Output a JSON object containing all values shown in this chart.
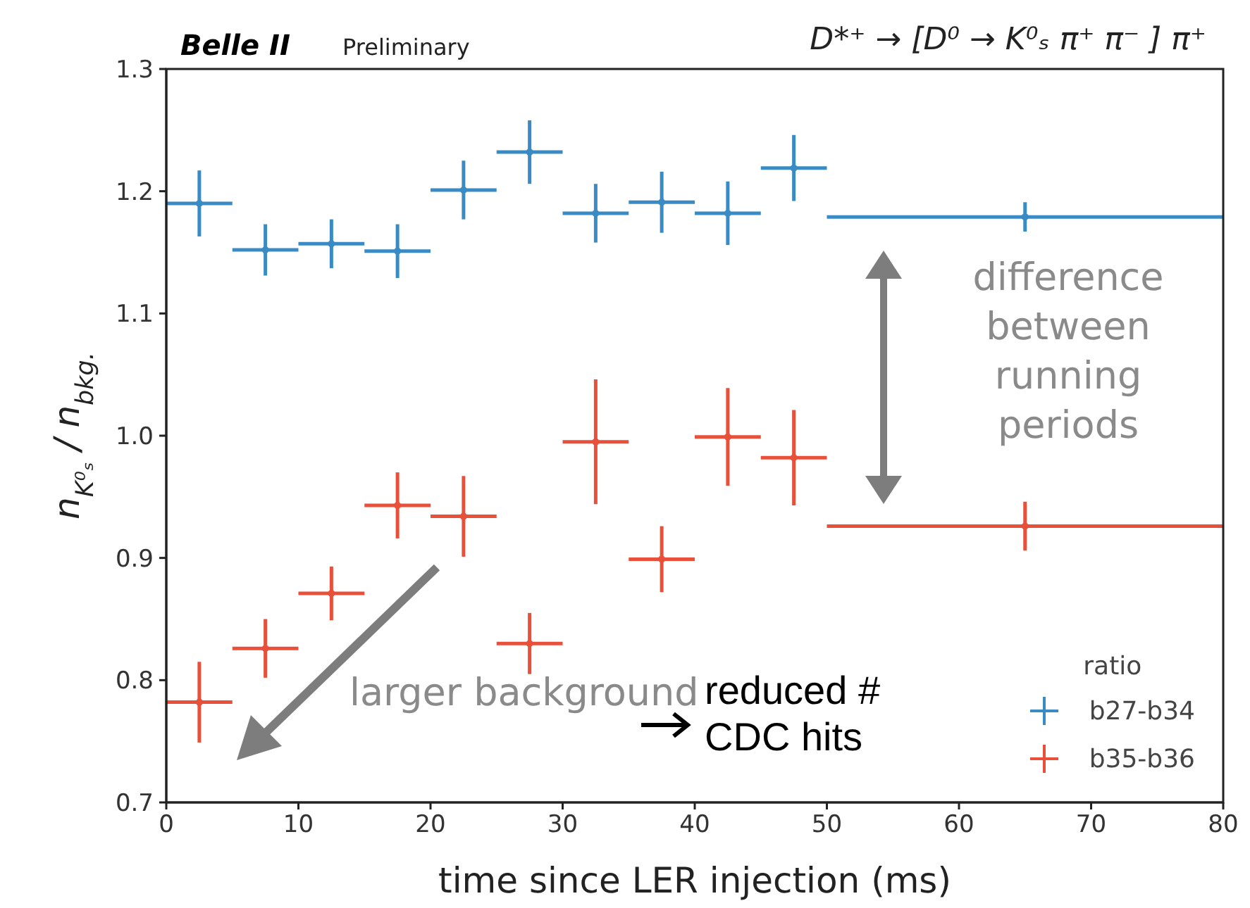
{
  "chart_data": {
    "type": "scatter",
    "title": "D*⁺ → [D⁰ → K⁰ₛ π⁺ π⁻ ] π⁺",
    "xlabel": "time since LER injection (ms)",
    "ylabel": "n$_{K⁰ₛ}$ / n$_{bkg.}$",
    "legend_title": "ratio",
    "annotations": [
      "Belle II",
      "Preliminary",
      "difference between running periods",
      "larger background",
      "reduced # CDC hits"
    ],
    "x": [
      2.5,
      7.5,
      12.5,
      17.5,
      22.5,
      27.5,
      32.5,
      37.5,
      42.5,
      47.5,
      65
    ],
    "series": [
      {
        "name": "b27-b34",
        "color": "#3a8bc4",
        "values": [
          1.19,
          1.152,
          1.157,
          1.151,
          1.201,
          1.232,
          1.182,
          1.191,
          1.182,
          1.219,
          1.179
        ],
        "errors": [
          0.027,
          0.021,
          0.02,
          0.022,
          0.024,
          0.026,
          0.024,
          0.025,
          0.026,
          0.027,
          0.012
        ],
        "xerrors": [
          2.5,
          2.5,
          2.5,
          2.5,
          2.5,
          2.5,
          2.5,
          2.5,
          2.5,
          2.5,
          15
        ]
      },
      {
        "name": "b35-b36",
        "color": "#e8503a",
        "values": [
          0.782,
          0.826,
          0.871,
          0.943,
          0.934,
          0.83,
          0.995,
          0.899,
          0.999,
          0.982,
          0.926
        ],
        "errors": [
          0.033,
          0.024,
          0.022,
          0.027,
          0.033,
          0.025,
          0.051,
          0.027,
          0.04,
          0.039,
          0.02
        ],
        "xerrors": [
          2.5,
          2.5,
          2.5,
          2.5,
          2.5,
          2.5,
          2.5,
          2.5,
          2.5,
          2.5,
          15
        ]
      }
    ],
    "xlim": [
      0,
      80
    ],
    "xticks": [
      0,
      10,
      20,
      30,
      40,
      50,
      60,
      70,
      80
    ],
    "ylim": [
      0.7,
      1.3
    ],
    "yticks": [
      0.7,
      0.8,
      0.9,
      {
        "value": 1.0,
        "label": "1.0"
      },
      1.1,
      1.2,
      1.3
    ],
    "legend": "bottom right",
    "marker": "circle",
    "grid": false
  }
}
